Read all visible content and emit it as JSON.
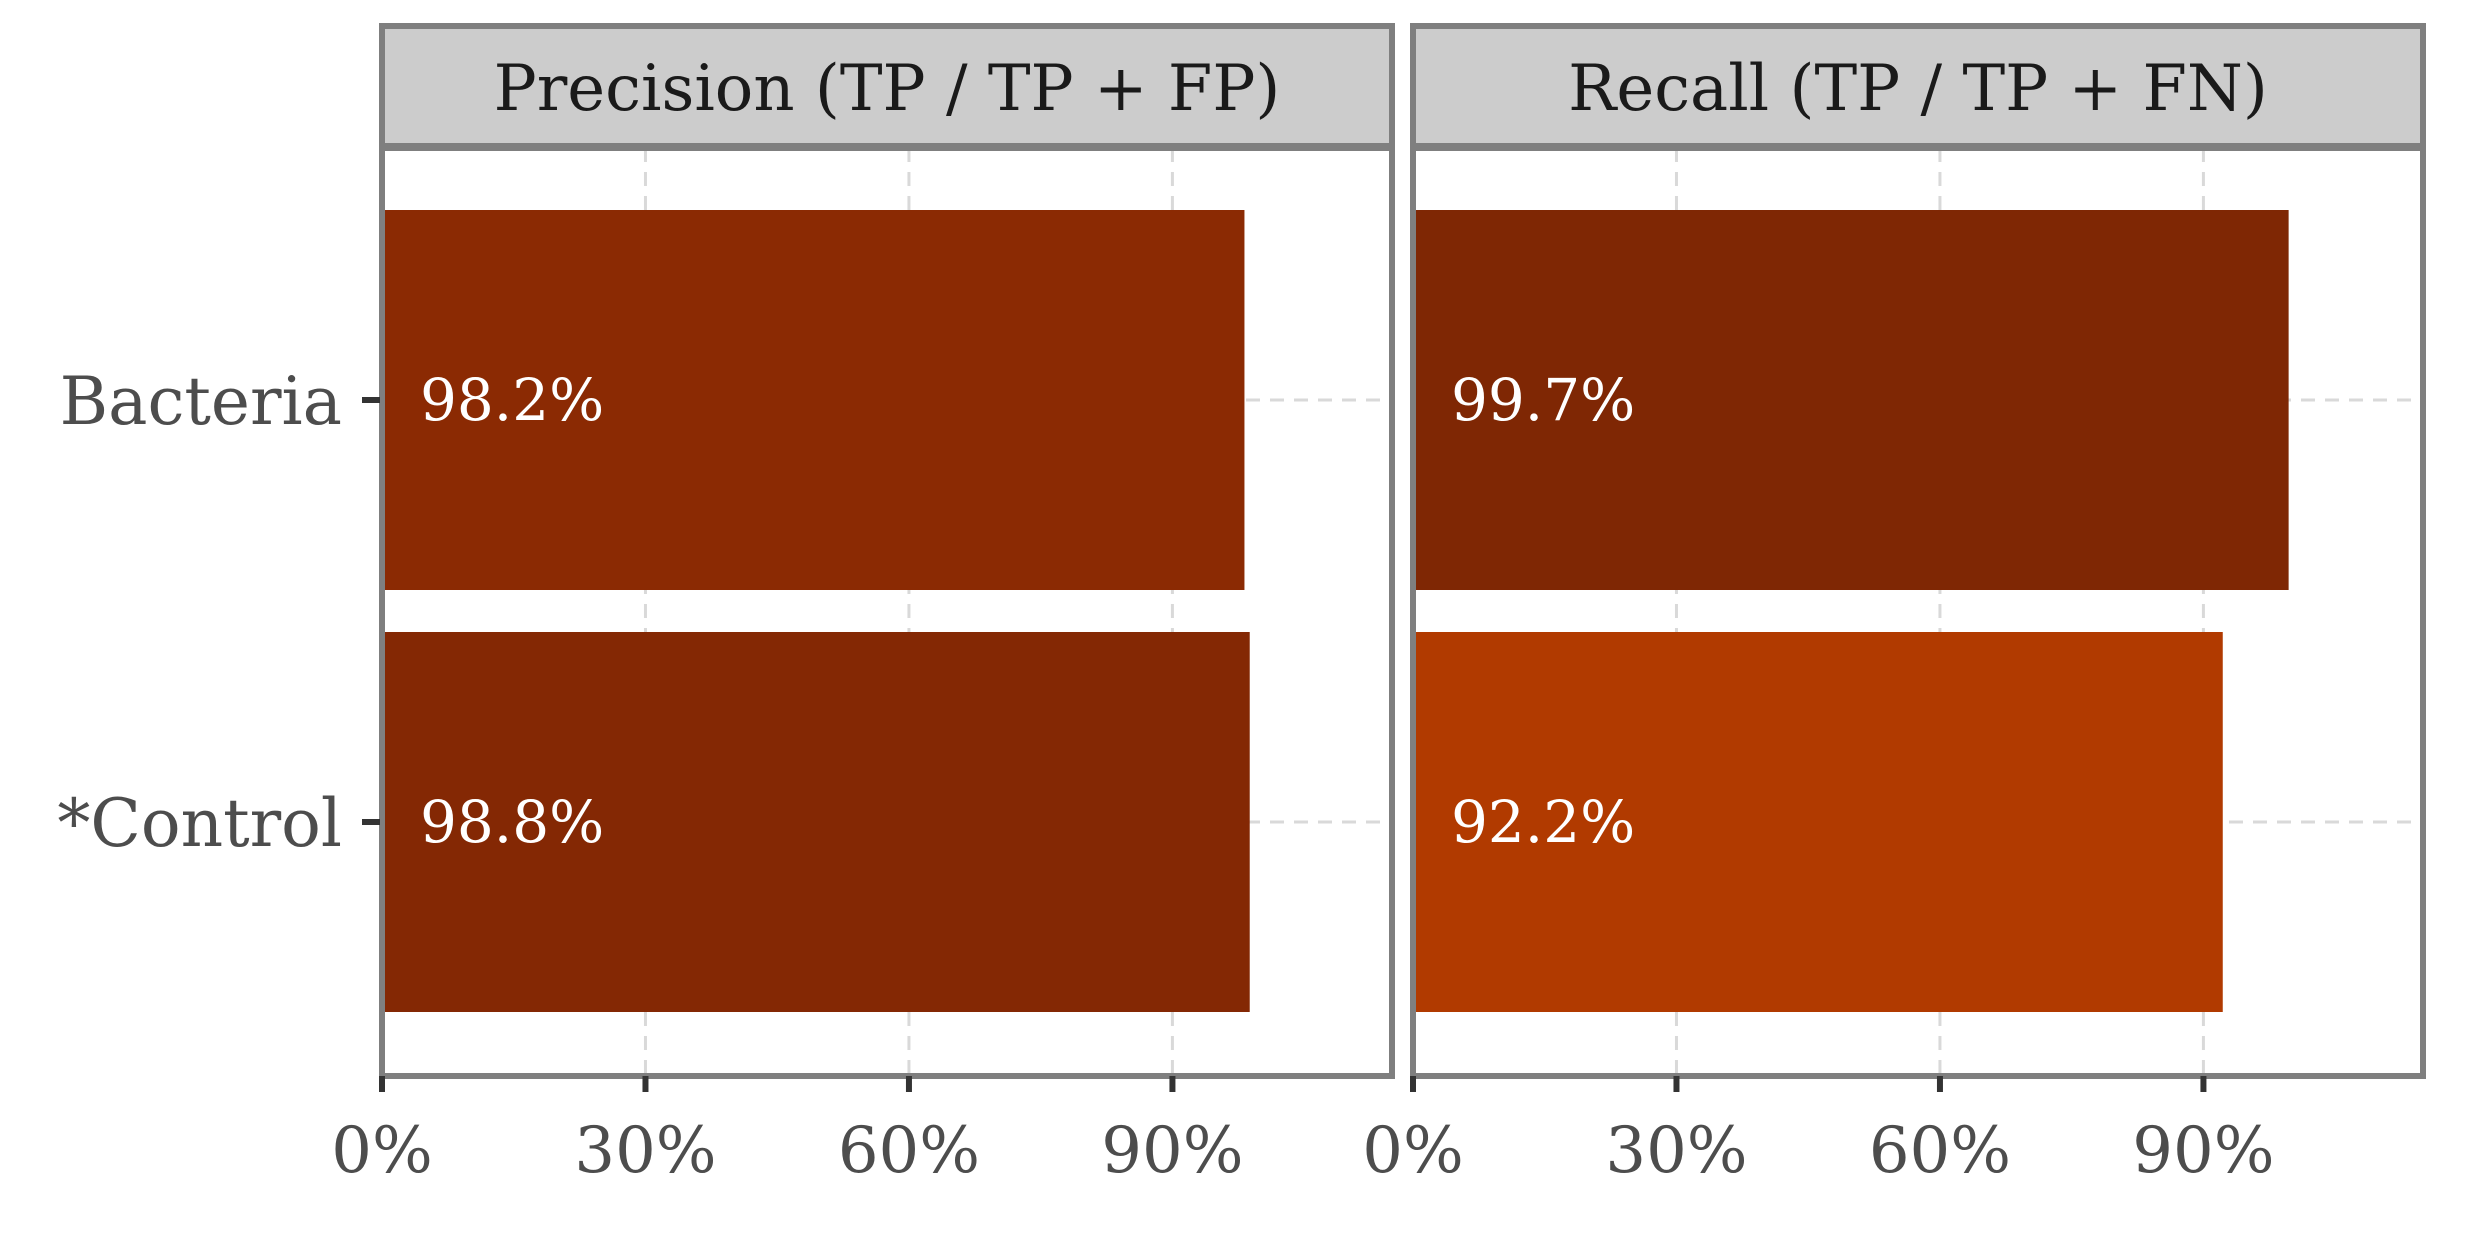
{
  "chart_data": {
    "type": "bar",
    "orientation": "horizontal",
    "categories": [
      "Bacteria",
      "*Control"
    ],
    "xlim": [
      0,
      115
    ],
    "x_ticks": [
      0,
      30,
      60,
      90
    ],
    "x_tick_labels": [
      "0%",
      "30%",
      "60%",
      "90%"
    ],
    "grid": true,
    "panels": [
      {
        "title": "Precision (TP / TP + FP)",
        "values": [
          98.2,
          98.8
        ],
        "labels": [
          "98.2%",
          "98.8%"
        ],
        "colors": [
          "#8b2a03",
          "#842804"
        ]
      },
      {
        "title": "Recall (TP / TP + FN)",
        "values": [
          99.7,
          92.2
        ],
        "labels": [
          "99.7%",
          "92.2%"
        ],
        "colors": [
          "#7f2704",
          "#b13a00"
        ]
      }
    ]
  }
}
